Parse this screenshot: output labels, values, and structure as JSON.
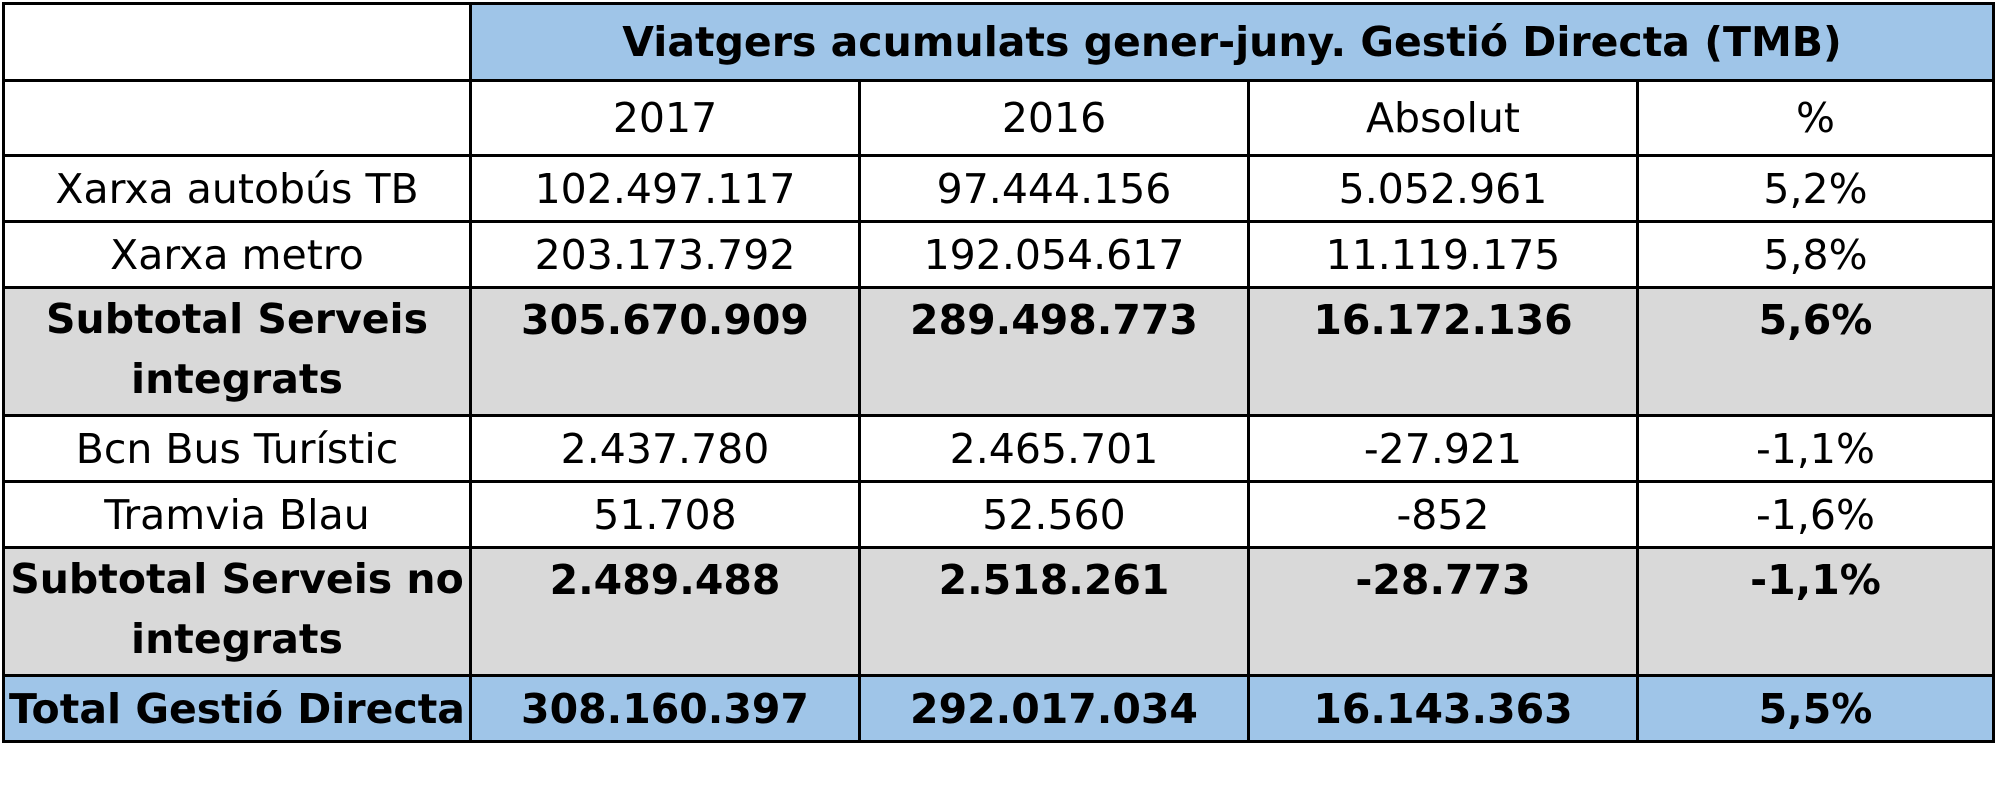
{
  "table": {
    "title": "Viatgers acumulats gener-juny. Gestió Directa (TMB)",
    "columns": [
      "2017",
      "2016",
      "Absolut",
      "%"
    ],
    "rows": [
      {
        "label": "Xarxa autobús TB",
        "values": [
          "102.497.117",
          "97.444.156",
          "5.052.961",
          "5,2%"
        ]
      },
      {
        "label": "Xarxa metro",
        "values": [
          "203.173.792",
          "192.054.617",
          "11.119.175",
          "5,8%"
        ]
      },
      {
        "label": "Subtotal Serveis integrats",
        "values": [
          "305.670.909",
          "289.498.773",
          "16.172.136",
          "5,6%"
        ]
      },
      {
        "label": "Bcn Bus Turístic",
        "values": [
          "2.437.780",
          "2.465.701",
          "-27.921",
          "-1,1%"
        ]
      },
      {
        "label": "Tramvia Blau",
        "values": [
          "51.708",
          "52.560",
          "-852",
          "-1,6%"
        ]
      },
      {
        "label": "Subtotal Serveis no integrats",
        "values": [
          "2.489.488",
          "2.518.261",
          "-28.773",
          "-1,1%"
        ]
      },
      {
        "label": "Total Gestió Directa",
        "values": [
          "308.160.397",
          "292.017.034",
          "16.143.363",
          "5,5%"
        ]
      }
    ]
  },
  "colors": {
    "header_fill": "#9fc5e8",
    "subtotal_fill": "#d9d9d9",
    "border": "#000000"
  }
}
